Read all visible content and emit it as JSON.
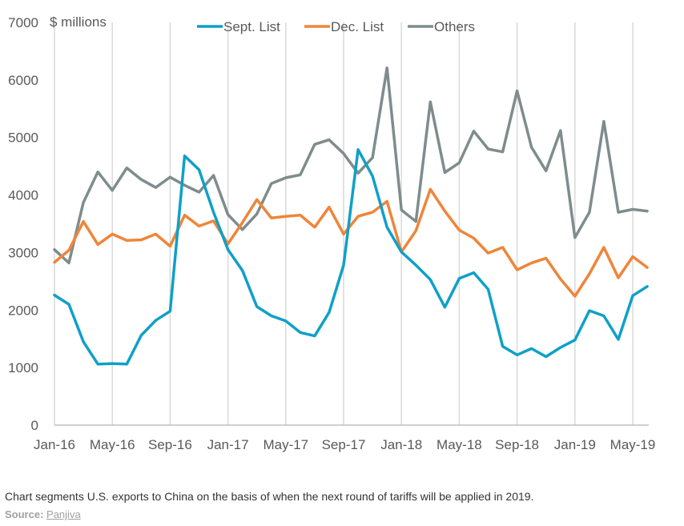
{
  "chart_data": {
    "type": "line",
    "unit_label": "$ millions",
    "ylim": [
      0,
      7000
    ],
    "y_ticks": [
      0,
      1000,
      2000,
      3000,
      4000,
      5000,
      6000,
      7000
    ],
    "x_tick_labels": [
      "Jan-16",
      "May-16",
      "Sep-16",
      "Jan-17",
      "May-17",
      "Sep-17",
      "Jan-18",
      "May-18",
      "Sep-18",
      "Jan-19",
      "May-19"
    ],
    "x_tick_index": [
      0,
      4,
      8,
      12,
      16,
      20,
      24,
      28,
      32,
      36,
      40
    ],
    "grid": "vertical",
    "legend_position": "top",
    "x": [
      "Jan-16",
      "Feb-16",
      "Mar-16",
      "Apr-16",
      "May-16",
      "Jun-16",
      "Jul-16",
      "Aug-16",
      "Sep-16",
      "Oct-16",
      "Nov-16",
      "Dec-16",
      "Jan-17",
      "Feb-17",
      "Mar-17",
      "Apr-17",
      "May-17",
      "Jun-17",
      "Jul-17",
      "Aug-17",
      "Sep-17",
      "Oct-17",
      "Nov-17",
      "Dec-17",
      "Jan-18",
      "Feb-18",
      "Mar-18",
      "Apr-18",
      "May-18",
      "Jun-18",
      "Jul-18",
      "Aug-18",
      "Sep-18",
      "Oct-18",
      "Nov-18",
      "Dec-18",
      "Jan-19",
      "Feb-19",
      "Mar-19",
      "Apr-19",
      "May-19",
      "Jun-19"
    ],
    "series": [
      {
        "name": "Sept. List",
        "color": "#0fa0c8",
        "values": [
          2260,
          2100,
          1450,
          1060,
          1070,
          1060,
          1560,
          1820,
          1980,
          4680,
          4440,
          3700,
          3050,
          2690,
          2060,
          1900,
          1810,
          1610,
          1550,
          1960,
          2780,
          4790,
          4330,
          3440,
          3010,
          2780,
          2530,
          2050,
          2550,
          2650,
          2360,
          1370,
          1220,
          1330,
          1190,
          1350,
          1480,
          1990,
          1900,
          1490,
          2250,
          2410
        ]
      },
      {
        "name": "Dec. List",
        "color": "#ef8539",
        "values": [
          2830,
          3040,
          3540,
          3140,
          3320,
          3210,
          3220,
          3320,
          3110,
          3650,
          3460,
          3550,
          3150,
          3520,
          3920,
          3600,
          3630,
          3650,
          3440,
          3790,
          3320,
          3630,
          3700,
          3890,
          3010,
          3380,
          4100,
          3720,
          3390,
          3250,
          2990,
          3090,
          2700,
          2820,
          2900,
          2540,
          2240,
          2630,
          3090,
          2560,
          2930,
          2740
        ]
      },
      {
        "name": "Others",
        "color": "#7f8c8d",
        "values": [
          3050,
          2820,
          3870,
          4400,
          4080,
          4470,
          4270,
          4130,
          4310,
          4170,
          4050,
          4340,
          3660,
          3400,
          3670,
          4200,
          4300,
          4350,
          4880,
          4960,
          4720,
          4380,
          4650,
          6210,
          3740,
          3540,
          5620,
          4390,
          4560,
          5110,
          4800,
          4750,
          5810,
          4830,
          4420,
          5120,
          3260,
          3700,
          5280,
          3700,
          3750,
          3720
        ]
      }
    ]
  },
  "caption": "Chart segments U.S. exports to China on the basis of when the next round of tariffs will be applied in 2019.",
  "source_label": "Source:",
  "source_name": "Panjiva"
}
